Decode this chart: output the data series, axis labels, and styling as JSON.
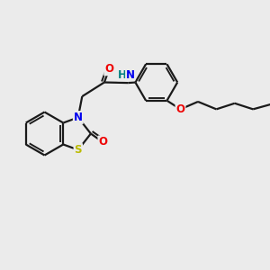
{
  "background_color": "#ebebeb",
  "bond_color": "#1a1a1a",
  "bond_width": 1.6,
  "atom_colors": {
    "N": "#0000ee",
    "O": "#ee0000",
    "S": "#bbbb00",
    "H": "#008080",
    "C": "#1a1a1a"
  },
  "font_size_atom": 8.5,
  "font_size_small": 7.5,
  "fig_size": [
    3.0,
    3.0
  ],
  "dpi": 100,
  "xlim": [
    0,
    10
  ],
  "ylim": [
    0,
    10
  ]
}
